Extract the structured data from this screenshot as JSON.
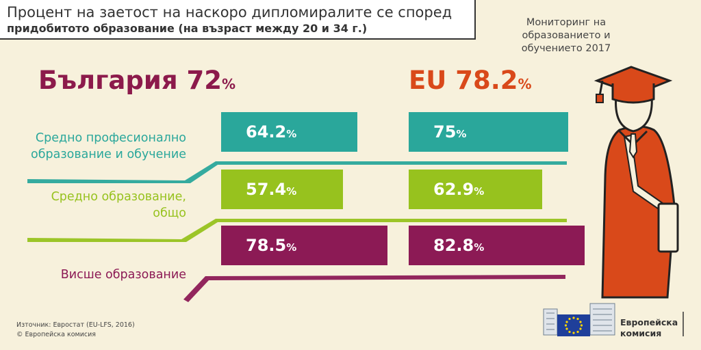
{
  "header": {
    "title_line1": "Процент на заетост на наскоро дипломиралите се според",
    "title_line2": "придобитото образование (на възраст между 20 и 34 г.)"
  },
  "monitor_label": [
    "Мониторинг на",
    "образованието и",
    "обучението 2017"
  ],
  "headlines": {
    "bulgaria_label": "България",
    "bulgaria_value": "72",
    "eu_label": "EU",
    "eu_value": "78.2",
    "percent_sign": "%"
  },
  "colors": {
    "vocational": "#2aa79b",
    "general": "#97c21e",
    "higher": "#8c1a55",
    "bulgaria": "#8c1a4b",
    "eu": "#d9491a"
  },
  "chart_data": {
    "type": "bar",
    "title": "Процент на заетост на наскоро дипломиралите се според придобитото образование (на възраст между 20 и 34 г.)",
    "categories": [
      [
        "Средно професионално",
        "образование и обучение"
      ],
      [
        "Средно образование,",
        "общо"
      ],
      [
        "Висше образование"
      ]
    ],
    "series": [
      {
        "name": "България",
        "values": [
          64.2,
          57.4,
          78.5
        ]
      },
      {
        "name": "EU",
        "values": [
          75,
          62.9,
          82.8
        ]
      }
    ],
    "unit": "%",
    "value_labels": [
      [
        "64.2",
        "57.4",
        "78.5"
      ],
      [
        "75",
        "62.9",
        "82.8"
      ]
    ]
  },
  "source": {
    "line1": "Източник: Евростат (EU-LFS, 2016)",
    "line2": "© Европейска комисия"
  },
  "ec_logo": {
    "line1": "Европейска",
    "line2": "комисия"
  }
}
